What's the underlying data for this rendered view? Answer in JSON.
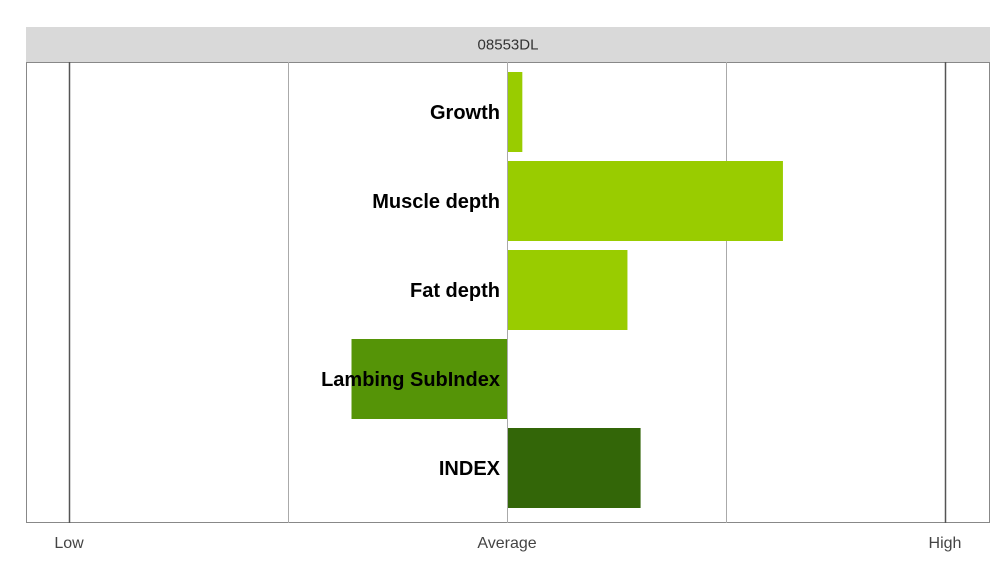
{
  "chart_data": {
    "type": "bar",
    "orientation": "horizontal",
    "panel_title": "08553DL",
    "categories": [
      "Growth",
      "Muscle depth",
      "Fat depth",
      "Lambing SubIndex",
      "INDEX"
    ],
    "values": [
      0.07,
      1.26,
      0.55,
      -0.71,
      0.61
    ],
    "bar_colors": [
      "#99cc00",
      "#99cc00",
      "#99cc00",
      "#559407",
      "#336608"
    ],
    "xlim": [
      -2,
      2
    ],
    "x_ticks": [
      {
        "value": -2,
        "label": "Low"
      },
      {
        "value": 0,
        "label": "Average"
      },
      {
        "value": 2,
        "label": "High"
      }
    ],
    "gridlines": [
      -2,
      -1,
      0,
      1,
      2
    ],
    "grid": true,
    "legend": "none"
  },
  "colors": {
    "header_bg": "#d9d9d9",
    "border": "#888888",
    "gridline": "#aaaaaa",
    "axis_line": "#555555"
  }
}
